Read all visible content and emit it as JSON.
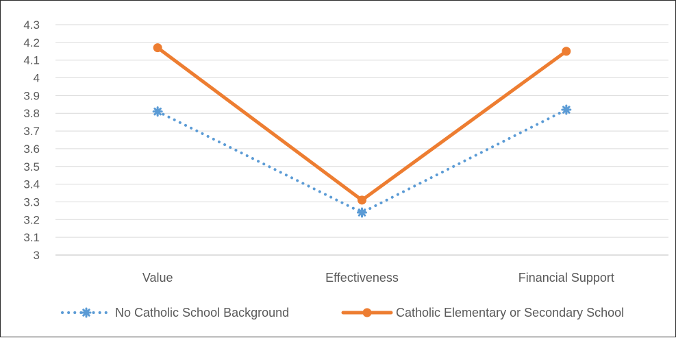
{
  "chart_data": {
    "type": "line",
    "categories": [
      "Value",
      "Effectiveness",
      "Financial Support"
    ],
    "series": [
      {
        "name": "No Catholic School Background",
        "values": [
          3.81,
          3.24,
          3.82
        ],
        "color": "#5b9bd5",
        "style": "dotted",
        "marker": "asterisk"
      },
      {
        "name": "Catholic Elementary or Secondary School",
        "values": [
          4.17,
          3.31,
          4.15
        ],
        "color": "#ed7d31",
        "style": "solid",
        "marker": "circle"
      }
    ],
    "ylim": [
      3,
      4.3
    ],
    "yticks": [
      "3",
      "3.1",
      "3.2",
      "3.3",
      "3.4",
      "3.5",
      "3.6",
      "3.7",
      "3.8",
      "3.9",
      "4",
      "4.1",
      "4.2",
      "4.3"
    ],
    "grid": true,
    "legend": "bottom",
    "title": "",
    "xlabel": "",
    "ylabel": ""
  }
}
